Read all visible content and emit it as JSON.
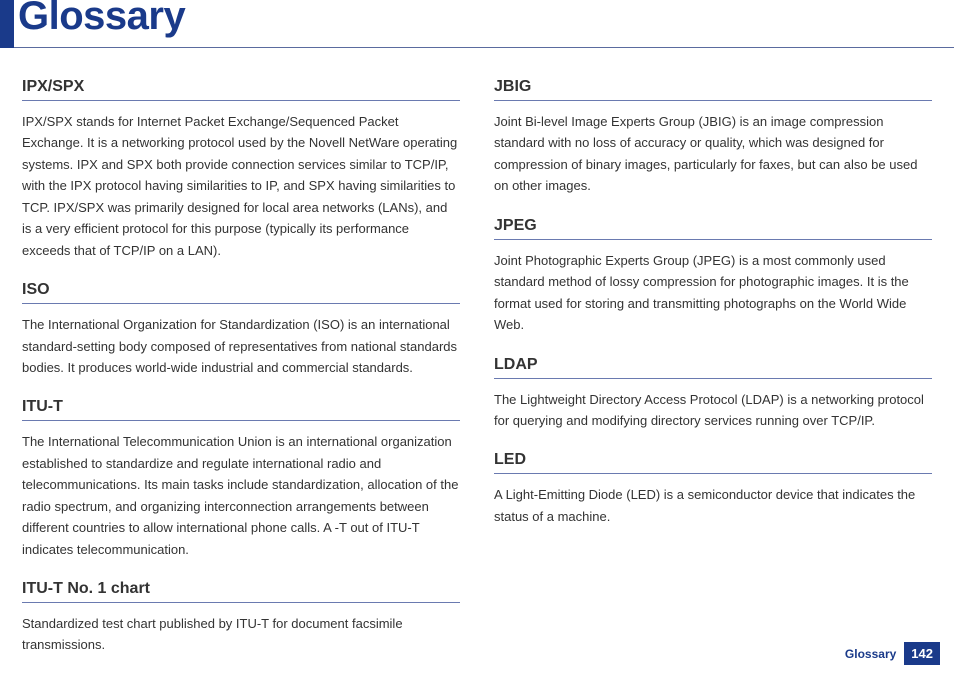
{
  "page": {
    "title": "Glossary",
    "footer_label": "Glossary",
    "page_number": "142"
  },
  "colors": {
    "accent": "#1a3a8a",
    "rule": "#6a7ab0",
    "text": "#333333",
    "background": "#ffffff"
  },
  "typography": {
    "title_fontsize": 40,
    "term_fontsize": 16,
    "body_fontsize": 13,
    "footer_fontsize": 12
  },
  "left_column": [
    {
      "term": "IPX/SPX",
      "definition": "IPX/SPX stands for Internet Packet Exchange/Sequenced Packet Exchange. It is a networking protocol used by the Novell NetWare operating systems. IPX and SPX both provide connection services similar to TCP/IP, with the IPX protocol having similarities to IP, and SPX having similarities to TCP. IPX/SPX was primarily designed for local area networks (LANs), and is a very efficient protocol for this purpose (typically its performance exceeds that of TCP/IP on a LAN)."
    },
    {
      "term": "ISO",
      "definition": "The International Organization for Standardization (ISO) is an international standard-setting body composed of representatives from national standards bodies. It produces world-wide industrial and commercial standards."
    },
    {
      "term": "ITU-T",
      "definition": "The International Telecommunication Union is an international organization established to standardize and regulate international radio and telecommunications. Its main tasks include standardization, allocation of the radio spectrum, and organizing interconnection arrangements between different countries to allow international phone calls. A -T out of ITU-T indicates telecommunication."
    },
    {
      "term": "ITU-T No. 1 chart",
      "definition": "Standardized test chart published by ITU-T for document facsimile transmissions."
    }
  ],
  "right_column": [
    {
      "term": "JBIG",
      "definition": "Joint Bi-level Image Experts Group (JBIG) is an image compression standard with no loss of accuracy or quality, which was designed for compression of binary images, particularly for faxes, but can also be used on other images."
    },
    {
      "term": "JPEG",
      "definition": "Joint Photographic Experts Group (JPEG) is a most commonly used standard method of lossy compression for photographic images. It is the format used for storing and transmitting photographs on the World Wide Web."
    },
    {
      "term": "LDAP",
      "definition": "The Lightweight Directory Access Protocol (LDAP) is a networking protocol for querying and modifying directory services running over TCP/IP."
    },
    {
      "term": "LED",
      "definition": "A Light-Emitting Diode (LED) is a semiconductor device that indicates the status of a machine."
    }
  ]
}
